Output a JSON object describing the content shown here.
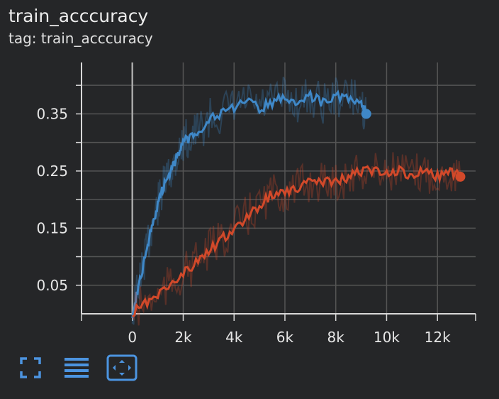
{
  "header": {
    "title": "train_acccuracy",
    "subtitle": "tag: train_acccuracy"
  },
  "toolbar": {
    "buttons": [
      {
        "icon": "fullscreen-icon"
      },
      {
        "icon": "list-lines-icon"
      },
      {
        "icon": "fit-domain-icon"
      }
    ]
  },
  "colors": {
    "background": "#252628",
    "grid": "#555555",
    "axis": "#d8d8d8",
    "series_blue": "#3f88c8",
    "series_orange": "#d2492a",
    "toolbar_icon": "#4c94e0"
  },
  "chart_data": {
    "type": "line",
    "title": "train_acccuracy",
    "xlabel": "",
    "ylabel": "",
    "xlim": [
      -2000,
      13500
    ],
    "ylim": [
      0.0,
      0.44
    ],
    "x_ticks": [
      0,
      2000,
      4000,
      6000,
      8000,
      10000,
      12000
    ],
    "x_tick_labels": [
      "0",
      "2k",
      "4k",
      "6k",
      "8k",
      "10k",
      "12k"
    ],
    "y_ticks": [
      0.05,
      0.15,
      0.25,
      0.35
    ],
    "y_tick_labels": [
      "0.05",
      "0.15",
      "0.25",
      "0.35"
    ],
    "grid": true,
    "series": [
      {
        "color": "#3f88c8",
        "x": [
          0,
          200,
          400,
          600,
          800,
          1000,
          1200,
          1400,
          1600,
          1800,
          2000,
          2300,
          2600,
          3000,
          3500,
          4000,
          4500,
          5000,
          5500,
          6000,
          6500,
          7000,
          7500,
          8000,
          8500,
          9000,
          9200
        ],
        "y": [
          0.0,
          0.04,
          0.08,
          0.12,
          0.16,
          0.19,
          0.22,
          0.24,
          0.26,
          0.28,
          0.3,
          0.31,
          0.32,
          0.34,
          0.35,
          0.36,
          0.37,
          0.36,
          0.37,
          0.38,
          0.37,
          0.38,
          0.37,
          0.38,
          0.38,
          0.37,
          0.35
        ]
      },
      {
        "color": "#d2492a",
        "x": [
          0,
          500,
          1000,
          1500,
          2000,
          2500,
          3000,
          3500,
          4000,
          4500,
          5000,
          5500,
          6000,
          6500,
          7000,
          7500,
          8000,
          8500,
          9000,
          9500,
          10000,
          10500,
          11000,
          11500,
          12000,
          12500,
          12900
        ],
        "y": [
          0.0,
          0.02,
          0.03,
          0.05,
          0.07,
          0.09,
          0.11,
          0.13,
          0.15,
          0.17,
          0.19,
          0.21,
          0.21,
          0.22,
          0.23,
          0.23,
          0.23,
          0.24,
          0.25,
          0.25,
          0.25,
          0.25,
          0.24,
          0.25,
          0.24,
          0.25,
          0.24
        ]
      }
    ]
  }
}
